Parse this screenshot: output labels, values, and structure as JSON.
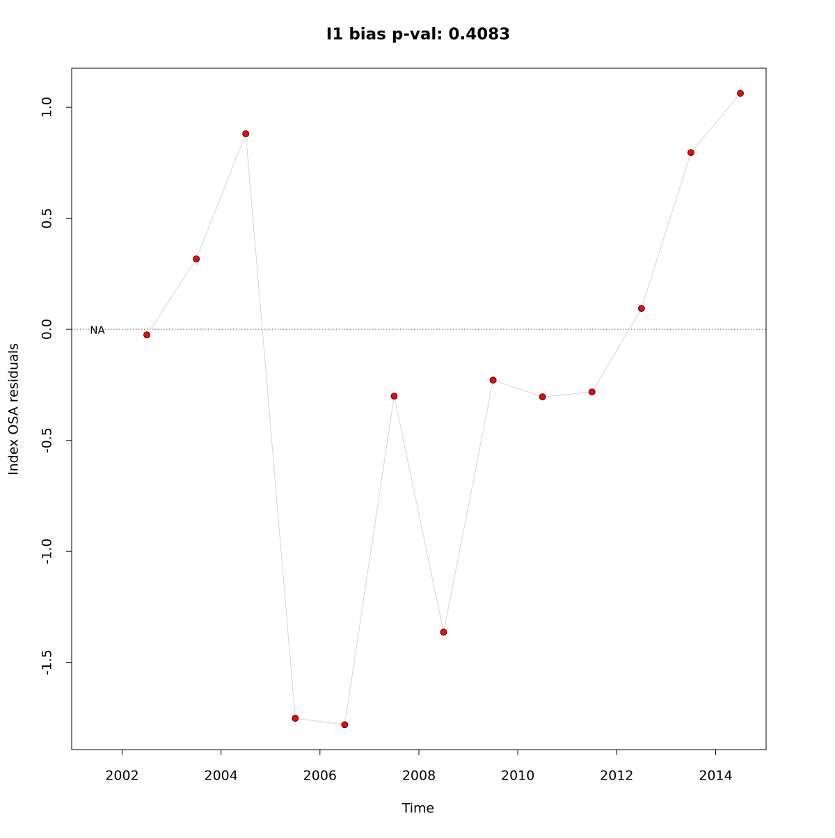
{
  "chart_data": {
    "type": "line",
    "title": "I1 bias p-val: 0.4083",
    "title_color": "#228b22",
    "x_label": "Time",
    "y_label": "Index OSA residuals",
    "x": [
      2001.5,
      2002.5,
      2003.5,
      2004.5,
      2005.5,
      2006.5,
      2007.5,
      2008.5,
      2009.5,
      2010.5,
      2011.5,
      2012.5,
      2013.5,
      2014.5
    ],
    "series": [
      {
        "name": "I1",
        "color": "#ff0000",
        "line_color": "#d3d3d3",
        "values": [
          null,
          -0.025,
          0.317,
          0.881,
          -1.752,
          -1.781,
          -0.301,
          -1.364,
          -0.229,
          -0.304,
          -0.282,
          0.094,
          0.796,
          1.063
        ],
        "value_labels": [
          "NA",
          null,
          null,
          null,
          null,
          null,
          null,
          null,
          null,
          null,
          null,
          null,
          null,
          null
        ]
      }
    ],
    "hline": 0,
    "xlim": [
      2000.98,
      2015.02
    ],
    "ylim": [
      -1.893,
      1.176
    ],
    "xticks": [
      2002,
      2004,
      2006,
      2008,
      2010,
      2012,
      2014
    ],
    "yticks": [
      {
        "value": -1.5,
        "label": "-1.5"
      },
      {
        "value": -1.0,
        "label": "-1.0"
      },
      -0.5,
      {
        "value": 0.0,
        "label": "0.0"
      },
      0.5,
      {
        "value": 1.0,
        "label": "1.0"
      }
    ]
  }
}
